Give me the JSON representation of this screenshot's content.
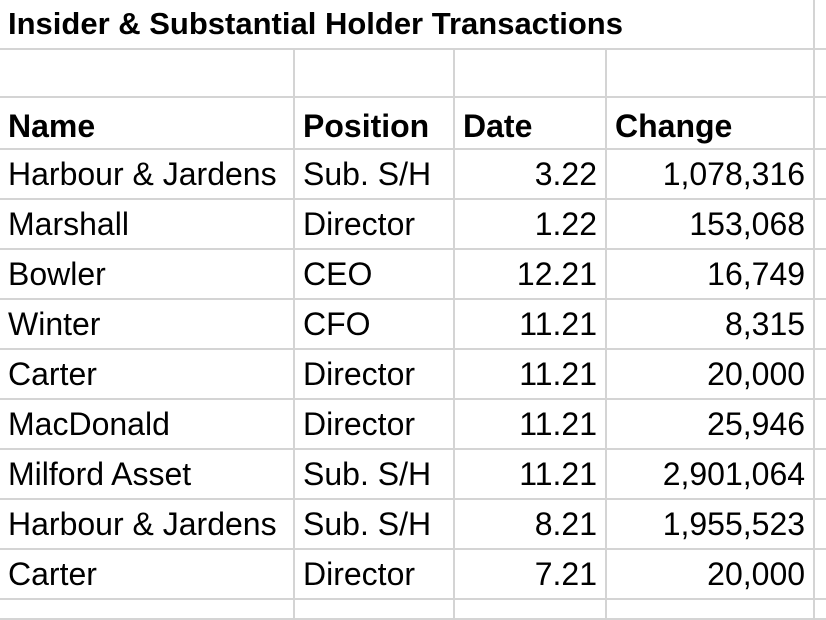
{
  "sheet": {
    "title": "Insider & Substantial Holder Transactions",
    "headers": {
      "name": "Name",
      "position": "Position",
      "date": "Date",
      "change": "Change"
    },
    "rows": [
      {
        "name": "Harbour & Jardens",
        "position": "Sub. S/H",
        "date": "3.22",
        "change": "1,078,316"
      },
      {
        "name": "Marshall",
        "position": "Director",
        "date": "1.22",
        "change": "153,068"
      },
      {
        "name": "Bowler",
        "position": "CEO",
        "date": "12.21",
        "change": "16,749"
      },
      {
        "name": "Winter",
        "position": "CFO",
        "date": "11.21",
        "change": "8,315"
      },
      {
        "name": "Carter",
        "position": "Director",
        "date": "11.21",
        "change": "20,000"
      },
      {
        "name": "MacDonald",
        "position": "Director",
        "date": "11.21",
        "change": "25,946"
      },
      {
        "name": "Milford Asset",
        "position": "Sub. S/H",
        "date": "11.21",
        "change": "2,901,064"
      },
      {
        "name": "Harbour & Jardens",
        "position": "Sub. S/H",
        "date": "8.21",
        "change": "1,955,523"
      },
      {
        "name": "Carter",
        "position": "Director",
        "date": "7.21",
        "change": "20,000"
      }
    ]
  }
}
